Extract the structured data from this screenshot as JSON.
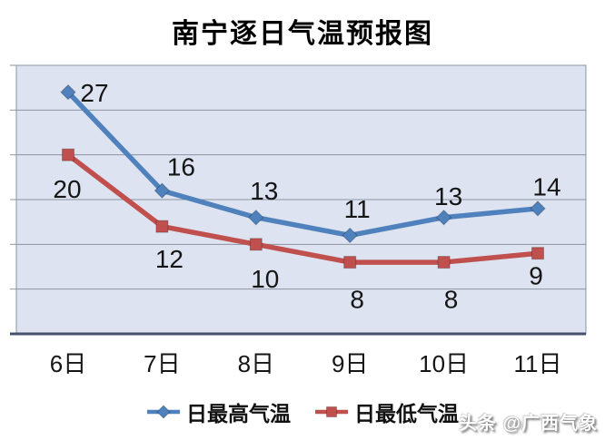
{
  "watermark": "头条 @广西气象",
  "chart_data": {
    "type": "line",
    "title": "南宁逐日气温预报图",
    "categories": [
      "6日",
      "7日",
      "8日",
      "9日",
      "10日",
      "11日"
    ],
    "series": [
      {
        "name": "日最高气温",
        "values": [
          27,
          16,
          13,
          11,
          13,
          14
        ],
        "color": "#4f81bd",
        "marker": "diamond",
        "label_dx": [
          29,
          21,
          9,
          8,
          5,
          10
        ],
        "label_dy": [
          1,
          -26,
          -29,
          -29,
          -23,
          -24
        ]
      },
      {
        "name": "日最低气温",
        "values": [
          20,
          12,
          10,
          8,
          8,
          9
        ],
        "color": "#c0504d",
        "marker": "square",
        "label_dx": [
          -1,
          8,
          10,
          8,
          8,
          -2
        ],
        "label_dy": [
          38,
          36,
          38,
          41,
          41,
          25
        ]
      }
    ],
    "ylim": [
      0,
      30
    ],
    "grid_step": 5,
    "grid": true,
    "legend_position": "bottom",
    "xlabel": "",
    "ylabel": "",
    "colors": {
      "plot_bg": "#dde3f0",
      "grid": "#8c95a5",
      "axis": "#46506a",
      "data_label": "#151515",
      "tick_label": "#151515"
    }
  }
}
